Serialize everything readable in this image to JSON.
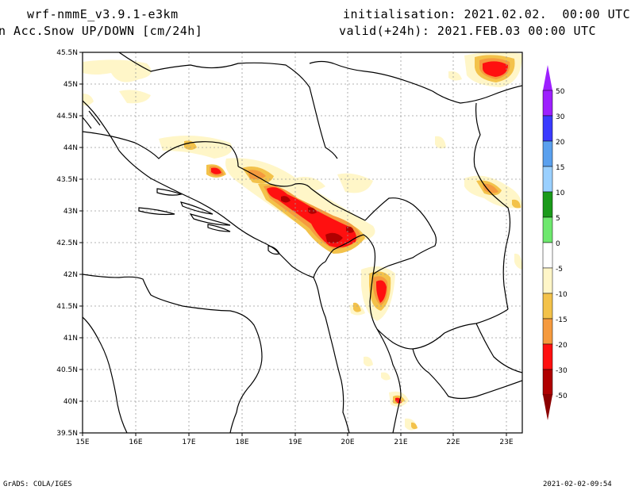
{
  "header": {
    "model": "wrf-nmmE_v3.9.1-e3km",
    "variable": "n Acc.Snow UP/DOWN [cm/24h]",
    "init": "initialisation: 2021.02.02.  00:00 UTC",
    "valid": "valid(+24h): 2021.FEB.03 00:00 UTC"
  },
  "footer": {
    "left": "GrADS: COLA/IGES",
    "right": "2021-02-02-09:54"
  },
  "axes": {
    "lon_labels": [
      "15E",
      "16E",
      "17E",
      "18E",
      "19E",
      "20E",
      "21E",
      "22E",
      "23E"
    ],
    "lat_labels": [
      "39.5N",
      "40N",
      "40.5N",
      "41N",
      "41.5N",
      "42N",
      "42.5N",
      "43N",
      "43.5N",
      "44N",
      "44.5N",
      "45N",
      "45.5N"
    ],
    "lon_range": [
      15,
      23.3
    ],
    "lat_range": [
      39.5,
      45.5
    ]
  },
  "colorbar": {
    "levels": [
      "50",
      "30",
      "20",
      "15",
      "10",
      "5",
      "0",
      "-5",
      "-10",
      "-15",
      "-20",
      "-30",
      "-50"
    ],
    "colors": [
      "#9d20ff",
      "#3a3aff",
      "#5aa0ee",
      "#9ad0ff",
      "#1a9a1a",
      "#6ee86e",
      "#ffffff",
      "#fff6c8",
      "#f3c24a",
      "#f59a3e",
      "#ff1010",
      "#b00000"
    ],
    "top_arrow_color": "#9d20ff",
    "bottom_arrow_color": "#8b0000"
  },
  "colors": {
    "light": "#fff6c8",
    "yellow": "#f3c24a",
    "orange": "#f59a3e",
    "red": "#ff1010",
    "darkred": "#b00000"
  }
}
